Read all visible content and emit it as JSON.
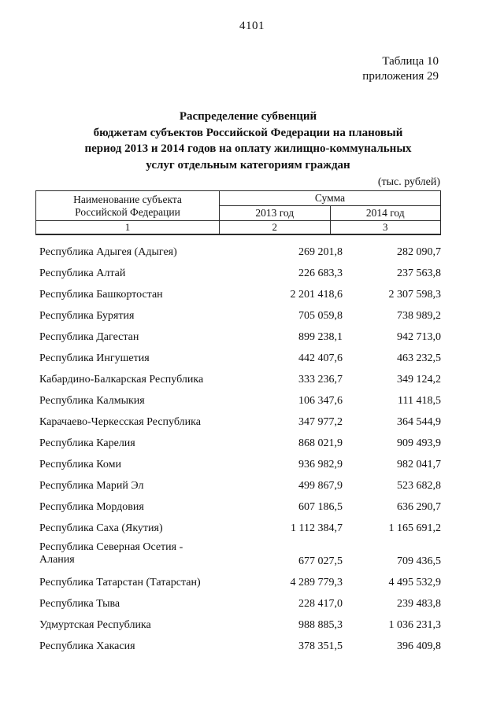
{
  "page": {
    "number": "4101"
  },
  "annotation": {
    "line1": "Таблица 10",
    "line2": "приложения 29"
  },
  "title": {
    "line1": "Распределение субвенций",
    "line2": "бюджетам субъектов Российской Федерации на плановый",
    "line3": "период 2013 и 2014 годов на оплату жилищно-коммунальных",
    "line4": "услуг отдельным категориям граждан"
  },
  "units_note": "(тыс. рублей)",
  "table": {
    "header": {
      "name_line1": "Наименование субъекта",
      "name_line2": "Российской Федерации",
      "sum_column": "Сумма",
      "year1": "2013 год",
      "year2": "2014 год",
      "column_numbers": [
        "1",
        "2",
        "3"
      ]
    },
    "rows": [
      {
        "name": "Республика Адыгея (Адыгея)",
        "y2013": "269 201,8",
        "y2014": "282 090,7"
      },
      {
        "name": "Республика Алтай",
        "y2013": "226 683,3",
        "y2014": "237 563,8"
      },
      {
        "name": "Республика Башкортостан",
        "y2013": "2 201 418,6",
        "y2014": "2 307 598,3"
      },
      {
        "name": "Республика Бурятия",
        "y2013": "705 059,8",
        "y2014": "738 989,2"
      },
      {
        "name": "Республика Дагестан",
        "y2013": "899 238,1",
        "y2014": "942 713,0"
      },
      {
        "name": "Республика Ингушетия",
        "y2013": "442 407,6",
        "y2014": "463 232,5"
      },
      {
        "name": "Кабардино-Балкарская Республика",
        "y2013": "333 236,7",
        "y2014": "349 124,2"
      },
      {
        "name": "Республика Калмыкия",
        "y2013": "106 347,6",
        "y2014": "111 418,5"
      },
      {
        "name": "Карачаево-Черкесская Республика",
        "y2013": "347 977,2",
        "y2014": "364 544,9"
      },
      {
        "name": "Республика Карелия",
        "y2013": "868 021,9",
        "y2014": "909 493,9"
      },
      {
        "name": "Республика Коми",
        "y2013": "936 982,9",
        "y2014": "982 041,7"
      },
      {
        "name": "Республика Марий Эл",
        "y2013": "499 867,9",
        "y2014": "523 682,8"
      },
      {
        "name": "Республика Мордовия",
        "y2013": "607 186,5",
        "y2014": "636 290,7"
      },
      {
        "name": "Республика Саха (Якутия)",
        "y2013": "1 112 384,7",
        "y2014": "1 165 691,2"
      },
      {
        "name": "Республика Северная Осетия -",
        "name2": "Алания",
        "y2013": "677 027,5",
        "y2014": "709 436,5"
      },
      {
        "name": "Республика Татарстан (Татарстан)",
        "y2013": "4 289 779,3",
        "y2014": "4 495 532,9"
      },
      {
        "name": "Республика Тыва",
        "y2013": "228 417,0",
        "y2014": "239 483,8"
      },
      {
        "name": "Удмуртская Республика",
        "y2013": "988 885,3",
        "y2014": "1 036 231,3"
      },
      {
        "name": "Республика Хакасия",
        "y2013": "378 351,5",
        "y2014": "396 409,8"
      }
    ]
  }
}
